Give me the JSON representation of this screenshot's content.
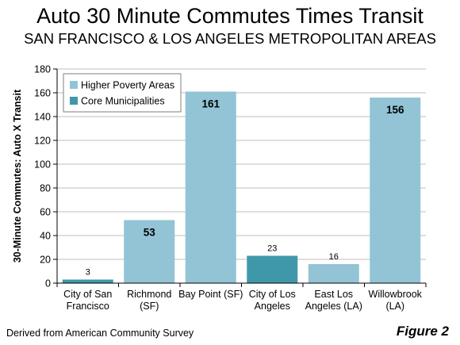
{
  "chart_data": {
    "type": "bar",
    "title": "Auto 30 Minute Commutes Times Transit",
    "subtitle": "SAN FRANCISCO & LOS ANGELES METROPOLITAN AREAS",
    "ylabel": "30-Minute Commutes:  Auto X Transit",
    "xlabel": "",
    "ylim": [
      0,
      180
    ],
    "yticks": [
      0,
      20,
      40,
      60,
      80,
      100,
      120,
      140,
      160,
      180
    ],
    "grid": true,
    "legend_position": "top-left",
    "categories": [
      [
        "City of San",
        "Francisco"
      ],
      [
        "Richmond",
        "(SF)"
      ],
      [
        "Bay Point (SF)"
      ],
      [
        "City of Los",
        "Angeles"
      ],
      [
        "East Los",
        "Angeles (LA)"
      ],
      [
        "Willowbrook",
        "(LA)"
      ]
    ],
    "values": [
      3,
      53,
      161,
      23,
      16,
      156
    ],
    "data_labels": [
      "3",
      "53",
      "161",
      "23",
      "16",
      "156"
    ],
    "groups": [
      "core",
      "poverty",
      "poverty",
      "core",
      "poverty",
      "poverty"
    ],
    "legend": [
      {
        "key": "poverty",
        "label": "Higher Poverty Areas",
        "color": "#92c4d6"
      },
      {
        "key": "core",
        "label": "Core Municipalities",
        "color": "#3f98aa"
      }
    ],
    "source": "Derived from American Community Survey",
    "figure_label": "Figure 2"
  }
}
